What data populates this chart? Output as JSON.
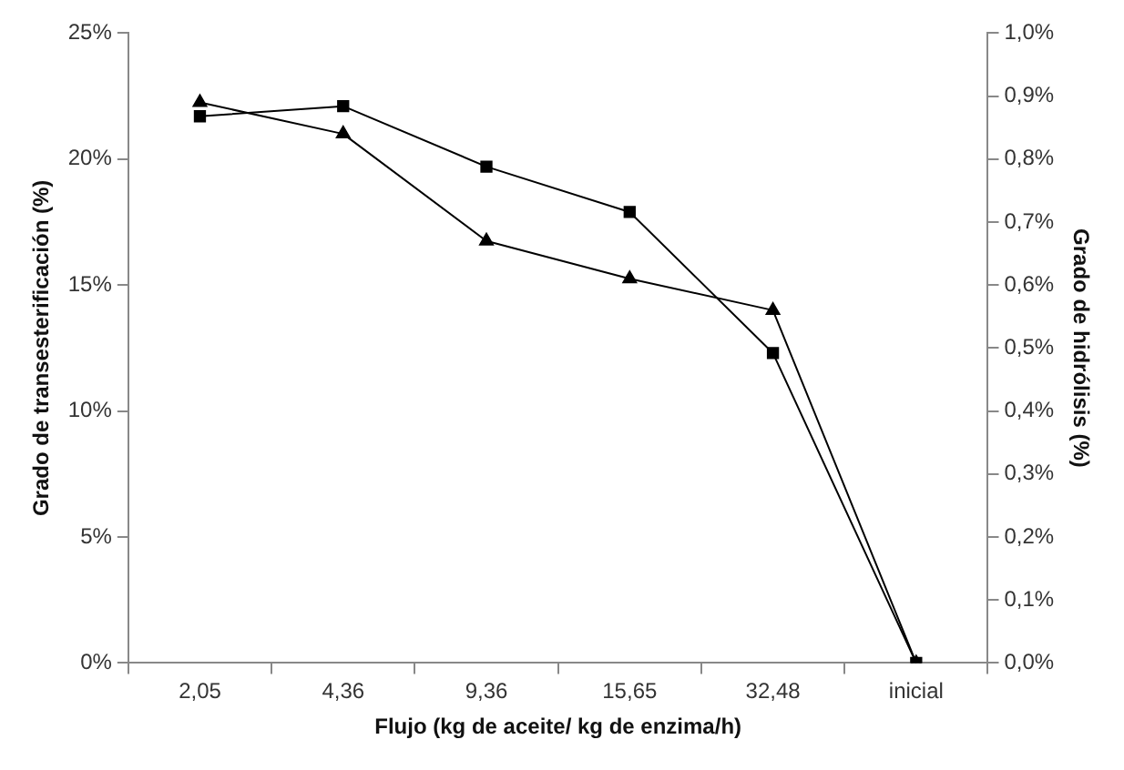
{
  "chart_data": {
    "type": "line",
    "xlabel": "Flujo (kg de aceite/ kg de enzima/h)",
    "ylabel": "Grado de transesterificación (%)",
    "y2label": "Grado de hidrólisis (%)",
    "categories": [
      "2,05",
      "4,36",
      "9,36",
      "15,65",
      "32,48",
      "inicial"
    ],
    "series": [
      {
        "color": "#000000",
        "marker": "square",
        "values": [
          21.7,
          22.1,
          19.7,
          17.9,
          12.3,
          0
        ]
      },
      {
        "color": "#000000",
        "marker": "triangle",
        "axis": "y2",
        "values": [
          0.89,
          0.84,
          0.67,
          0.61,
          0.56,
          0
        ]
      }
    ],
    "ylim": [
      0,
      25
    ],
    "yticks": [
      {
        "value": 0,
        "label": "0%"
      },
      {
        "value": 5,
        "label": "5%"
      },
      {
        "value": 10,
        "label": "10%"
      },
      {
        "value": 15,
        "label": "15%"
      },
      {
        "value": 20,
        "label": "20%"
      },
      {
        "value": 25,
        "label": "25%"
      }
    ],
    "y2lim": [
      0,
      1
    ],
    "y2ticks": [
      {
        "value": 0,
        "label": "0,0%"
      },
      {
        "value": 0.1,
        "label": "0,1%"
      },
      {
        "value": 0.2,
        "label": "0,2%"
      },
      {
        "value": 0.3,
        "label": "0,3%"
      },
      {
        "value": 0.4,
        "label": "0,4%"
      },
      {
        "value": 0.5,
        "label": "0,5%"
      },
      {
        "value": 0.6,
        "label": "0,6%"
      },
      {
        "value": 0.7,
        "label": "0,7%"
      },
      {
        "value": 0.8,
        "label": "0,8%"
      },
      {
        "value": 0.9,
        "label": "0,9%"
      },
      {
        "value": 1,
        "label": "1,0%"
      }
    ],
    "grid": false,
    "legend": false,
    "line_style": "solid"
  }
}
